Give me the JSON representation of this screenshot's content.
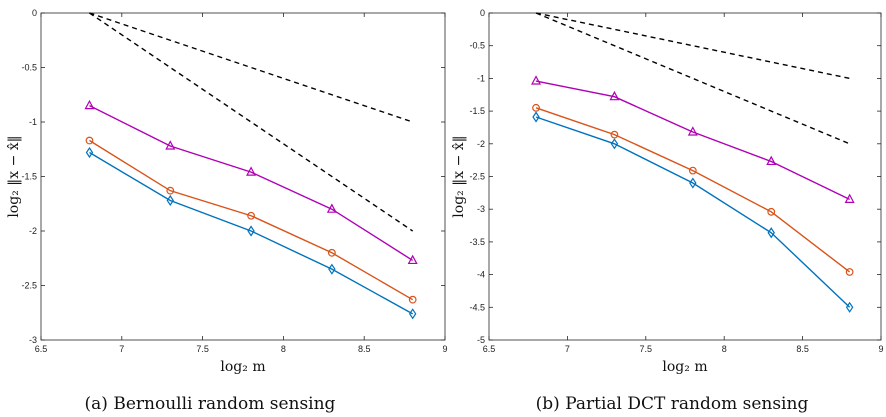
{
  "chart_data": [
    {
      "type": "line",
      "caption": "(a)  Bernoulli random sensing",
      "xlabel": "log₂ m",
      "ylabel": "log₂ ‖x − x̂‖",
      "xlim": [
        6.5,
        9
      ],
      "ylim": [
        -3,
        0
      ],
      "xticks": [
        6.5,
        7,
        7.5,
        8,
        8.5,
        9
      ],
      "xtick_labels": [
        "6.5",
        "7",
        "7.5",
        "8",
        "8.5",
        "9"
      ],
      "yticks": [
        0,
        -0.5,
        -1,
        -1.5,
        -2,
        -2.5,
        -3
      ],
      "ytick_labels": [
        "0",
        "-0.5",
        "-1",
        "-1.5",
        "-2",
        "-2.5",
        "-3"
      ],
      "grid": false,
      "x": [
        6.8,
        7.3,
        7.8,
        8.3,
        8.8
      ],
      "series": [
        {
          "marker": "triangle",
          "color": "#b000b5",
          "values": [
            -0.85,
            -1.22,
            -1.46,
            -1.8,
            -2.27
          ]
        },
        {
          "marker": "circle",
          "color": "#d95319",
          "values": [
            -1.17,
            -1.63,
            -1.86,
            -2.2,
            -2.63
          ]
        },
        {
          "marker": "diamond",
          "color": "#0072bd",
          "values": [
            -1.28,
            -1.72,
            -2.0,
            -2.35,
            -2.76
          ]
        }
      ],
      "reference_lines": [
        {
          "style": "dashed",
          "color": "#000000",
          "x": [
            6.8,
            8.8
          ],
          "y": [
            0,
            -1
          ]
        },
        {
          "style": "dashed",
          "color": "#000000",
          "x": [
            6.8,
            8.8
          ],
          "y": [
            0,
            -2
          ]
        }
      ]
    },
    {
      "type": "line",
      "caption": "(b)  Partial DCT random sensing",
      "xlabel": "log₂ m",
      "ylabel": "log₂ ‖x − x̂‖",
      "xlim": [
        6.5,
        9
      ],
      "ylim": [
        -5,
        0
      ],
      "xticks": [
        6.5,
        7,
        7.5,
        8,
        8.5,
        9
      ],
      "xtick_labels": [
        "6.5",
        "7",
        "7.5",
        "8",
        "8.5",
        "9"
      ],
      "yticks": [
        0,
        -0.5,
        -1,
        -1.5,
        -2,
        -2.5,
        -3,
        -3.5,
        -4,
        -4.5,
        -5
      ],
      "ytick_labels": [
        "0",
        "-0.5",
        "-1",
        "-1.5",
        "-2",
        "-2.5",
        "-3",
        "-3.5",
        "-4",
        "-4.5",
        "-5"
      ],
      "grid": false,
      "x": [
        6.8,
        7.3,
        7.8,
        8.3,
        8.8
      ],
      "series": [
        {
          "marker": "triangle",
          "color": "#b000b5",
          "values": [
            -1.04,
            -1.28,
            -1.82,
            -2.27,
            -2.85
          ]
        },
        {
          "marker": "circle",
          "color": "#d95319",
          "values": [
            -1.45,
            -1.86,
            -2.41,
            -3.04,
            -3.96
          ]
        },
        {
          "marker": "diamond",
          "color": "#0072bd",
          "values": [
            -1.59,
            -2.0,
            -2.6,
            -3.36,
            -4.5
          ]
        }
      ],
      "reference_lines": [
        {
          "style": "dashed",
          "color": "#000000",
          "x": [
            6.8,
            8.8
          ],
          "y": [
            0,
            -1
          ]
        },
        {
          "style": "dashed",
          "color": "#000000",
          "x": [
            6.8,
            8.8
          ],
          "y": [
            0,
            -2
          ]
        }
      ]
    }
  ]
}
